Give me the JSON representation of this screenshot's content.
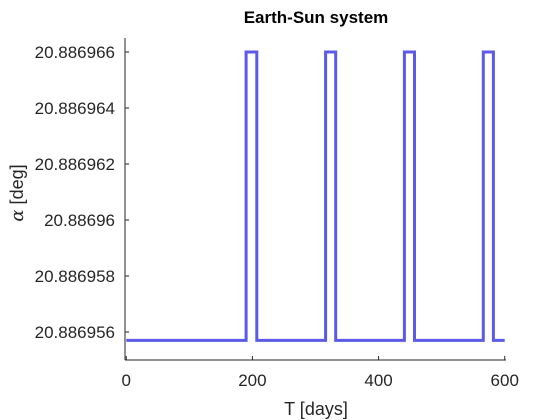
{
  "chart_data": {
    "type": "line",
    "title": "Earth-Sun system",
    "xlabel": "T [days]",
    "ylabel_symbol": "α",
    "ylabel_unit": "[deg]",
    "xlim": [
      -2,
      602
    ],
    "ylim": [
      20.886955,
      20.8869665
    ],
    "xticks": [
      0,
      200,
      400,
      600
    ],
    "xtick_labels": [
      "0",
      "200",
      "400",
      "600"
    ],
    "yticks": [
      20.886956,
      20.886958,
      20.88696,
      20.886962,
      20.886964,
      20.886966
    ],
    "ytick_labels": [
      "20.886956",
      "20.886958",
      "20.88696",
      "20.886962",
      "20.886964",
      "20.886966"
    ],
    "grid": false,
    "series": [
      {
        "color": "#5b5be8",
        "x": [
          0,
          190,
          190,
          207,
          207,
          316,
          316,
          332,
          332,
          441,
          441,
          457,
          457,
          566,
          566,
          582,
          582,
          600
        ],
        "y": [
          20.8869557,
          20.8869557,
          20.886966,
          20.886966,
          20.8869557,
          20.8869557,
          20.886966,
          20.886966,
          20.8869557,
          20.8869557,
          20.886966,
          20.886966,
          20.8869557,
          20.8869557,
          20.886966,
          20.886966,
          20.8869557,
          20.8869557
        ]
      }
    ]
  }
}
